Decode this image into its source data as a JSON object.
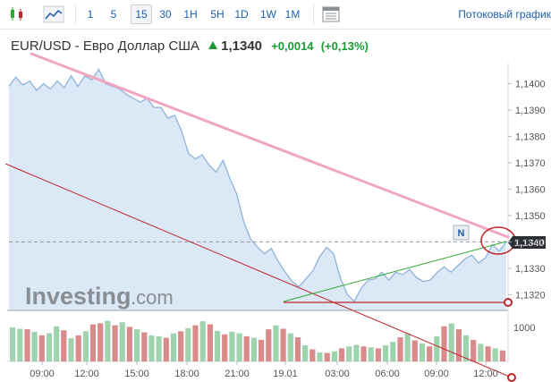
{
  "toolbar": {
    "intervals": [
      "1",
      "5",
      "15",
      "30",
      "1H",
      "5H",
      "1D",
      "1W",
      "1M"
    ],
    "active_interval": "15",
    "streaming_label": "Потоковый график"
  },
  "instrument": {
    "name": "EUR/USD - Евро Доллар США",
    "last": "1,1340",
    "change": "+0,0014",
    "change_pct": "(+0,13%)"
  },
  "colors": {
    "area_fill": "#dbe8f5",
    "area_line": "#8fb3db",
    "up_volume": "#9fd3ae",
    "down_volume": "#d98b8b",
    "pink_trend": "#f0a6c0",
    "red_line": "#c0262b",
    "green_line": "#2ea836",
    "accent_blue": "#1d5eab",
    "change_green": "#1b9c32"
  },
  "chart_data": {
    "type": "area",
    "title": "EUR/USD - Евро Доллар США",
    "x_labels": [
      "09:00",
      "12:00",
      "15:00",
      "18:00",
      "21:00",
      "19.01",
      "03:00",
      "06:00",
      "09:00",
      "12:00"
    ],
    "y_ticks": [
      "1,1320",
      "1,1330",
      "1,1340",
      "1,1350",
      "1,1360",
      "1,1370",
      "1,1380",
      "1,1390",
      "1,1400"
    ],
    "volume_tick": "1000",
    "ylim": [
      1.1314,
      1.1408
    ],
    "current_price": 1.134,
    "current_price_label": "1,1340",
    "news_marker": "N",
    "price_series": [
      1.1399,
      1.14025,
      1.13995,
      1.1401,
      1.13975,
      1.14,
      1.1398,
      1.1401,
      1.13985,
      1.1403,
      1.1399,
      1.1403,
      1.14015,
      1.14055,
      1.14,
      1.1399,
      1.1398,
      1.1396,
      1.13945,
      1.1393,
      1.13945,
      1.1391,
      1.1391,
      1.1387,
      1.1388,
      1.1382,
      1.13735,
      1.13715,
      1.1373,
      1.1369,
      1.13665,
      1.1371,
      1.1364,
      1.1358,
      1.13475,
      1.1341,
      1.1338,
      1.13355,
      1.13375,
      1.13325,
      1.13285,
      1.1325,
      1.1323,
      1.1326,
      1.1329,
      1.13345,
      1.1338,
      1.13355,
      1.1326,
      1.132,
      1.13175,
      1.13225,
      1.13255,
      1.1326,
      1.13285,
      1.13255,
      1.13285,
      1.13275,
      1.13295,
      1.13265,
      1.1325,
      1.13255,
      1.13285,
      1.13305,
      1.13285,
      1.1331,
      1.13335,
      1.1335,
      1.1332,
      1.1334,
      1.1339,
      1.13365,
      1.134
    ],
    "volume_series": [
      680,
      650,
      640,
      590,
      520,
      560,
      700,
      620,
      460,
      520,
      600,
      740,
      760,
      810,
      720,
      780,
      690,
      640,
      580,
      520,
      500,
      470,
      560,
      600,
      660,
      720,
      800,
      740,
      610,
      540,
      590,
      560,
      500,
      470,
      430,
      640,
      720,
      650,
      560,
      480,
      320,
      240,
      180,
      170,
      200,
      260,
      300,
      330,
      300,
      280,
      260,
      320,
      390,
      480,
      560,
      420,
      360,
      300,
      500,
      700,
      760,
      640,
      520,
      430,
      350,
      300,
      260,
      220
    ],
    "volume_up": [
      1,
      1,
      0,
      1,
      0,
      1,
      1,
      0,
      1,
      0,
      1,
      0,
      0,
      1,
      0,
      1,
      0,
      1,
      0,
      1,
      1,
      0,
      1,
      0,
      1,
      0,
      1,
      0,
      1,
      0,
      1,
      1,
      0,
      1,
      0,
      0,
      1,
      0,
      1,
      0,
      1,
      0,
      1,
      0,
      1,
      0,
      1,
      1,
      0,
      1,
      0,
      1,
      1,
      0,
      1,
      0,
      1,
      0,
      1,
      0,
      1,
      0,
      1,
      0,
      1,
      0,
      1,
      0
    ]
  },
  "watermark": {
    "brand": "Investing",
    "suffix": ".com"
  }
}
